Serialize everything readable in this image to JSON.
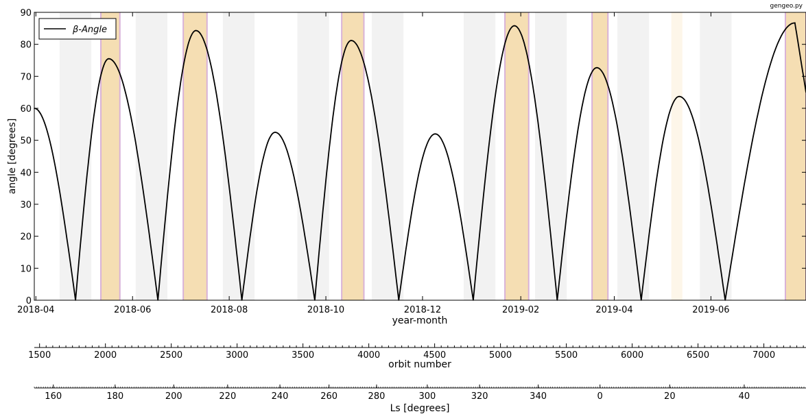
{
  "watermark": "gengeo.py",
  "chart_data": {
    "type": "line",
    "title": "",
    "xlabel": "year-month",
    "ylabel": "angle [degrees]",
    "ylim": [
      0,
      90
    ],
    "xlim": [
      "2018-03-31",
      "2019-07-31"
    ],
    "yticks": [
      0,
      10,
      20,
      30,
      40,
      50,
      60,
      70,
      80,
      90
    ],
    "xticks": [
      {
        "date": "2018-04-01",
        "label": "2018-04"
      },
      {
        "date": "2018-06-01",
        "label": "2018-06"
      },
      {
        "date": "2018-08-01",
        "label": "2018-08"
      },
      {
        "date": "2018-10-01",
        "label": "2018-10"
      },
      {
        "date": "2018-12-01",
        "label": "2018-12"
      },
      {
        "date": "2019-02-01",
        "label": "2019-02"
      },
      {
        "date": "2019-04-01",
        "label": "2019-04"
      },
      {
        "date": "2019-06-01",
        "label": "2019-06"
      }
    ],
    "grid": false,
    "legend": {
      "position": "top-left",
      "entries": [
        "β-Angle"
      ]
    },
    "series": [
      {
        "name": "β-Angle",
        "color": "#000000",
        "points": [
          {
            "x": "2018-03-31",
            "y": 60
          },
          {
            "x": "2018-04-26",
            "y": 0
          },
          {
            "x": "2018-05-17",
            "y": 75.5
          },
          {
            "x": "2018-06-17",
            "y": 0
          },
          {
            "x": "2018-07-11",
            "y": 84.3
          },
          {
            "x": "2018-08-09",
            "y": 0
          },
          {
            "x": "2018-08-30",
            "y": 52.5
          },
          {
            "x": "2018-09-24",
            "y": 0
          },
          {
            "x": "2018-10-17",
            "y": 81.2
          },
          {
            "x": "2018-11-16",
            "y": 0
          },
          {
            "x": "2018-12-09",
            "y": 52
          },
          {
            "x": "2019-01-02",
            "y": 0
          },
          {
            "x": "2019-01-28",
            "y": 85.8
          },
          {
            "x": "2019-02-24",
            "y": 0
          },
          {
            "x": "2019-03-21",
            "y": 72.7
          },
          {
            "x": "2019-04-18",
            "y": 0
          },
          {
            "x": "2019-05-12",
            "y": 63.7
          },
          {
            "x": "2019-06-10",
            "y": 0
          },
          {
            "x": "2019-07-24",
            "y": 86.7
          },
          {
            "x": "2019-07-31",
            "y": 65
          }
        ]
      }
    ],
    "shaded_regions": {
      "gray": {
        "color": "#f2f2f2",
        "ranges": [
          [
            "2018-04-16",
            "2018-05-06"
          ],
          [
            "2018-06-03",
            "2018-06-23"
          ],
          [
            "2018-07-28",
            "2018-08-17"
          ],
          [
            "2018-09-13",
            "2018-10-03"
          ],
          [
            "2018-10-30",
            "2018-11-19"
          ],
          [
            "2018-12-27",
            "2019-01-16"
          ],
          [
            "2019-02-10",
            "2019-03-02"
          ],
          [
            "2019-04-03",
            "2019-04-23"
          ],
          [
            "2019-05-25",
            "2019-06-14"
          ]
        ]
      },
      "orange": {
        "color": "#f5deb3",
        "edge_color": "#d8b2d8",
        "ranges": [
          [
            "2018-05-12",
            "2018-05-24"
          ],
          [
            "2018-07-03",
            "2018-07-18"
          ],
          [
            "2018-10-11",
            "2018-10-25"
          ],
          [
            "2019-01-22",
            "2019-02-06"
          ],
          [
            "2019-03-18",
            "2019-03-28"
          ],
          [
            "2019-07-18",
            "2019-07-31"
          ]
        ]
      },
      "pale": {
        "color": "#fdf6e9",
        "ranges": [
          [
            "2019-05-07",
            "2019-05-14"
          ]
        ]
      }
    },
    "secondary_axes": [
      {
        "label": "orbit number",
        "range": [
          1460,
          7320
        ],
        "major_step": 500,
        "minor_step": 50,
        "ticks": [
          1500,
          2000,
          2500,
          3000,
          3500,
          4000,
          4500,
          5000,
          5500,
          6000,
          6500,
          7000
        ]
      },
      {
        "label": "Ls [degrees]",
        "ticks": [
          {
            "label": "160",
            "date": "2018-04-12"
          },
          {
            "label": "180",
            "date": "2018-05-21"
          },
          {
            "label": "200",
            "date": "2018-06-27"
          },
          {
            "label": "220",
            "date": "2018-07-31"
          },
          {
            "label": "240",
            "date": "2018-09-02"
          },
          {
            "label": "260",
            "date": "2018-10-03"
          },
          {
            "label": "280",
            "date": "2018-11-02"
          },
          {
            "label": "300",
            "date": "2018-12-04"
          },
          {
            "label": "320",
            "date": "2019-01-06"
          },
          {
            "label": "340",
            "date": "2019-02-12"
          },
          {
            "label": "0",
            "date": "2019-03-23"
          },
          {
            "label": "20",
            "date": "2019-05-06"
          },
          {
            "label": "40",
            "date": "2019-06-22"
          }
        ]
      }
    ]
  }
}
